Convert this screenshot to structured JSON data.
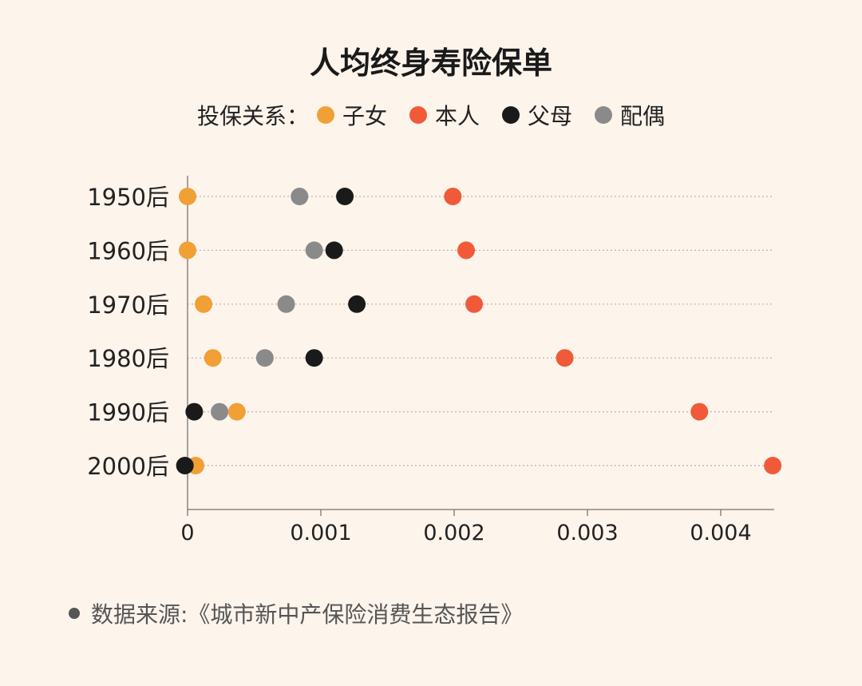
{
  "chart_data": {
    "type": "scatter",
    "title": "人均终身寿险保单",
    "legend_title": "投保关系：",
    "legend_position": "top-center",
    "categories": [
      "1950后",
      "1960后",
      "1970后",
      "1980后",
      "1990后",
      "2000后"
    ],
    "series": [
      {
        "name": "子女",
        "color": "#f0a035",
        "values": [
          0.0,
          0.0,
          0.00012,
          0.00019,
          0.00037,
          6e-05
        ]
      },
      {
        "name": "本人",
        "color": "#f05a38",
        "values": [
          0.00199,
          0.00209,
          0.00215,
          0.00283,
          0.00384,
          0.00439
        ]
      },
      {
        "name": "父母",
        "color": "#1a1a1a",
        "values": [
          0.00118,
          0.0011,
          0.00127,
          0.00095,
          5e-05,
          -2e-05
        ]
      },
      {
        "name": "配偶",
        "color": "#8a8a8a",
        "values": [
          0.00084,
          0.00095,
          0.00074,
          0.00058,
          0.00024,
          null
        ]
      }
    ],
    "x_ticks": [
      0,
      0.001,
      0.002,
      0.003,
      0.004
    ],
    "x_tick_labels": [
      "0",
      "0.001",
      "0.002",
      "0.003",
      "0.004"
    ],
    "xlim": [
      0,
      0.0044
    ],
    "grid": "horizontal dotted"
  },
  "source_text": "数据来源:《城市新中产保险消费生态报告》"
}
